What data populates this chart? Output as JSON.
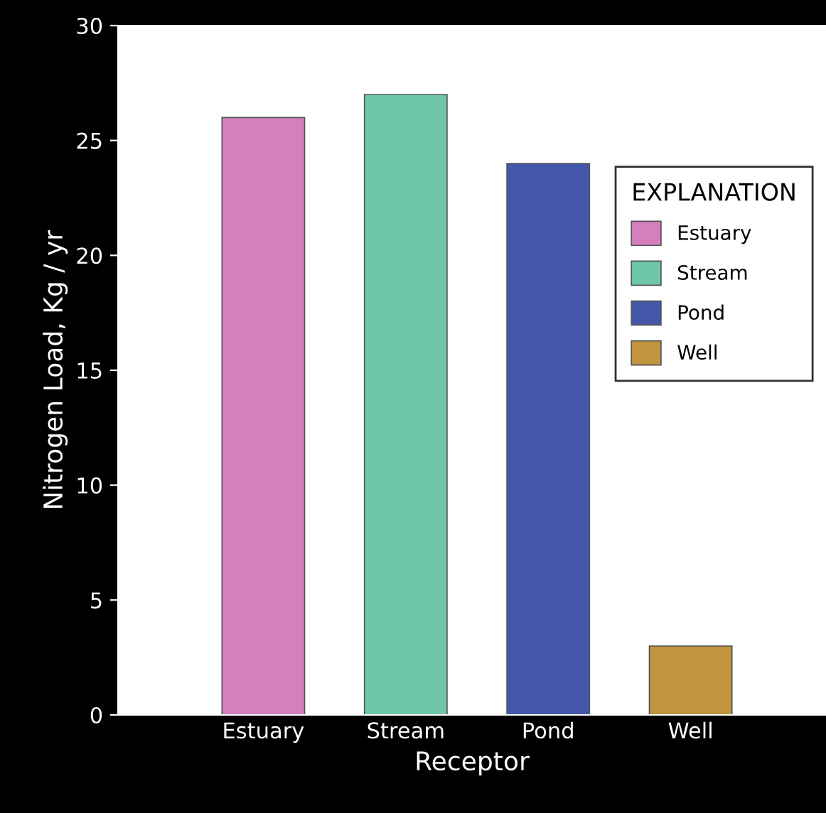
{
  "chart_data": {
    "type": "bar",
    "xlabel": "Receptor",
    "ylabel": "Nitrogen Load, Kg / yr",
    "legend_title": "EXPLANATION",
    "categories": [
      "Estuary",
      "Stream",
      "Pond",
      "Well"
    ],
    "series": [
      {
        "name": "Estuary",
        "color": "#d57fbc",
        "values": [
          26,
          null,
          null,
          null
        ]
      },
      {
        "name": "Stream",
        "color": "#6fc7aa",
        "values": [
          null,
          27,
          null,
          null
        ]
      },
      {
        "name": "Pond",
        "color": "#4457a8",
        "values": [
          null,
          null,
          24,
          null
        ]
      },
      {
        "name": "Well",
        "color": "#c0953d",
        "values": [
          null,
          null,
          null,
          3
        ]
      }
    ],
    "ylim": [
      0,
      30
    ],
    "yticks": [
      0,
      5,
      10,
      15,
      20,
      25,
      30
    ],
    "grid": false,
    "legend": "right"
  }
}
